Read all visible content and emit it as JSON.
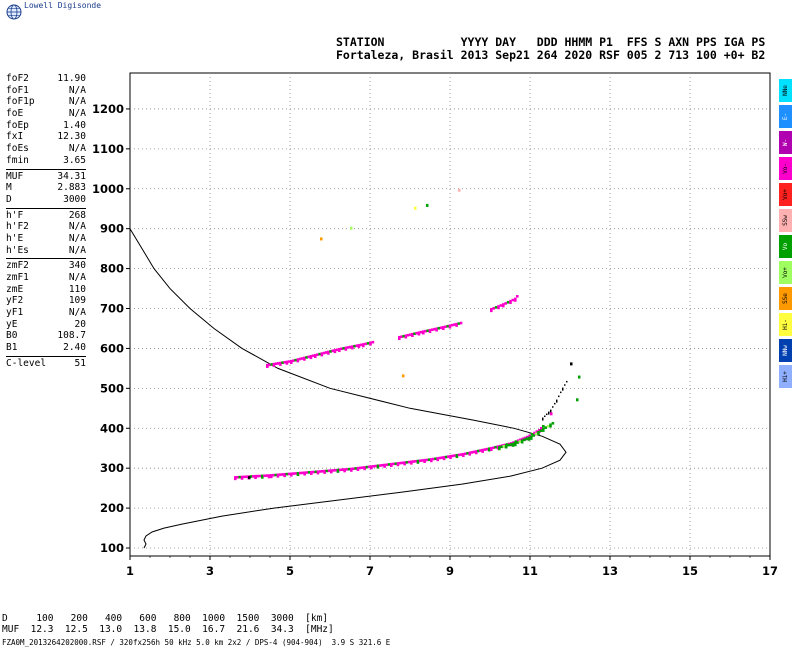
{
  "brand": {
    "name": "Lowell Digisonde",
    "icon": "globe-icon"
  },
  "header": {
    "line1": "STATION           YYYY DAY   DDD HHMM P1  FFS S AXN PPS IGA PS",
    "line2": "Fortaleza, Brasil 2013 Sep21 264 2020 RSF 005 2 713 100 +0+ B2"
  },
  "params_groups": [
    [
      {
        "k": "foF2",
        "v": "11.90"
      },
      {
        "k": "foF1",
        "v": "N/A"
      },
      {
        "k": "foF1p",
        "v": "N/A"
      },
      {
        "k": "foE",
        "v": "N/A"
      },
      {
        "k": "foEp",
        "v": "1.40"
      },
      {
        "k": "fxI",
        "v": "12.30"
      },
      {
        "k": "foEs",
        "v": "N/A"
      },
      {
        "k": "fmin",
        "v": "3.65"
      }
    ],
    [
      {
        "k": "MUF",
        "v": "34.31"
      },
      {
        "k": "M",
        "v": "2.883"
      },
      {
        "k": "D",
        "v": "3000"
      }
    ],
    [
      {
        "k": "h'F",
        "v": "268"
      },
      {
        "k": "h'F2",
        "v": "N/A"
      },
      {
        "k": "h'E",
        "v": "N/A"
      },
      {
        "k": "h'Es",
        "v": "N/A"
      }
    ],
    [
      {
        "k": "zmF2",
        "v": "340"
      },
      {
        "k": "zmF1",
        "v": "N/A"
      },
      {
        "k": "zmE",
        "v": "110"
      },
      {
        "k": "yF2",
        "v": "109"
      },
      {
        "k": "yF1",
        "v": "N/A"
      },
      {
        "k": "yE",
        "v": "20"
      },
      {
        "k": "B0",
        "v": "108.7"
      },
      {
        "k": "B1",
        "v": "2.40"
      }
    ],
    [
      {
        "k": "C-level",
        "v": "51"
      }
    ]
  ],
  "side_legend": [
    {
      "label": "NNe",
      "color": "#00e0ff"
    },
    {
      "label": "E-",
      "color": "#1e90ff"
    },
    {
      "label": "W-",
      "color": "#b000b0"
    },
    {
      "label": "Vo-",
      "color": "#ff00cc"
    },
    {
      "label": "Vo+",
      "color": "#ff2020"
    },
    {
      "label": "SSw",
      "color": "#ffb0b0"
    },
    {
      "label": "Vo",
      "color": "#00a000"
    },
    {
      "label": "Vo+",
      "color": "#a0ff60"
    },
    {
      "label": "SSe",
      "color": "#ff9900"
    },
    {
      "label": "Hi-",
      "color": "#ffff40"
    },
    {
      "label": "NNw",
      "color": "#0040b0"
    },
    {
      "label": "Hi+",
      "color": "#90b0ff"
    }
  ],
  "chart_data": {
    "type": "scatter",
    "title": "",
    "xlabel": "",
    "ylabel": "",
    "xlim": [
      1,
      17
    ],
    "ylim": [
      80,
      1290
    ],
    "x_ticks": [
      1,
      3,
      5,
      7,
      9,
      11,
      13,
      15,
      17
    ],
    "y_ticks": [
      100,
      200,
      300,
      400,
      500,
      600,
      700,
      800,
      900,
      1000,
      1100,
      1200
    ],
    "grid": true,
    "profile": {
      "h": [
        100,
        110,
        120,
        130,
        140,
        150,
        160,
        180,
        200,
        220,
        240,
        260,
        280,
        300,
        320,
        340,
        360,
        380,
        400,
        420,
        450,
        500,
        550,
        600,
        650,
        700,
        750,
        800,
        850,
        900
      ],
      "f": [
        1.35,
        1.4,
        1.35,
        1.4,
        1.55,
        1.85,
        2.3,
        3.3,
        4.6,
        6.2,
        7.8,
        9.3,
        10.5,
        11.3,
        11.75,
        11.9,
        11.75,
        11.3,
        10.6,
        9.6,
        8.0,
        6.0,
        4.7,
        3.8,
        3.1,
        2.5,
        2.0,
        1.6,
        1.3,
        1.0
      ]
    },
    "traces": [
      {
        "name": "O-trace F2",
        "color": "#ff00cc",
        "accent": "#00a000",
        "points": [
          [
            3.6,
            277
          ],
          [
            4.5,
            282
          ],
          [
            5.5,
            290
          ],
          [
            6.5,
            298
          ],
          [
            7.5,
            310
          ],
          [
            8.5,
            322
          ],
          [
            9.3,
            335
          ],
          [
            10.0,
            350
          ],
          [
            10.5,
            362
          ],
          [
            10.9,
            378
          ],
          [
            11.2,
            395
          ],
          [
            11.35,
            410
          ]
        ]
      },
      {
        "name": "X-trace F2",
        "color": "#00a000",
        "accent": "#a0ff60",
        "points": [
          [
            10.2,
            352
          ],
          [
            10.6,
            362
          ],
          [
            11.0,
            378
          ],
          [
            11.3,
            398
          ],
          [
            11.6,
            416
          ]
        ]
      },
      {
        "name": "multiple echo",
        "color": "#ff00cc",
        "accent": "#00a000",
        "points": [
          [
            4.4,
            558
          ],
          [
            5.0,
            568
          ],
          [
            5.6,
            583
          ],
          [
            6.2,
            598
          ],
          [
            6.8,
            610
          ],
          [
            7.1,
            617
          ]
        ]
      },
      {
        "name": "multiple echo 2",
        "color": "#ff00cc",
        "accent": "#00a000",
        "points": [
          [
            7.7,
            628
          ],
          [
            8.3,
            642
          ],
          [
            8.8,
            653
          ],
          [
            9.3,
            665
          ]
        ]
      },
      {
        "name": "multiple echo 3",
        "color": "#ff00cc",
        "accent": "#00a000",
        "points": [
          [
            10.0,
            698
          ],
          [
            10.3,
            710
          ],
          [
            10.6,
            724
          ],
          [
            10.7,
            737
          ]
        ]
      },
      {
        "name": "trace edge",
        "color": "#000000",
        "accent": "#000000",
        "points": [
          [
            11.3,
            425
          ],
          [
            11.5,
            445
          ],
          [
            11.65,
            470
          ],
          [
            11.8,
            500
          ],
          [
            11.95,
            525
          ]
        ]
      }
    ],
    "scatter": [
      {
        "x": 12.2,
        "y": 532,
        "c": "#00a000"
      },
      {
        "x": 12.15,
        "y": 475,
        "c": "#00a000"
      },
      {
        "x": 12.0,
        "y": 565,
        "c": "#000000"
      },
      {
        "x": 7.8,
        "y": 535,
        "c": "#ff9900"
      },
      {
        "x": 5.75,
        "y": 878,
        "c": "#ff9900"
      },
      {
        "x": 6.5,
        "y": 905,
        "c": "#a0ff60"
      },
      {
        "x": 8.1,
        "y": 955,
        "c": "#ffff40"
      },
      {
        "x": 8.4,
        "y": 962,
        "c": "#00a000"
      },
      {
        "x": 9.2,
        "y": 1000,
        "c": "#ffb0b0"
      },
      {
        "x": 3.95,
        "y": 280,
        "c": "#000000"
      },
      {
        "x": 11.5,
        "y": 440,
        "c": "#ff00cc"
      }
    ]
  },
  "distance_table": {
    "row1": "D     100   200   400   600   800  1000  1500  3000  [km]",
    "row2": "MUF  12.3  12.5  13.0  13.8  15.0  16.7  21.6  34.3  [MHz]"
  },
  "footer": "FZA0M_2013264202000.RSF / 320fx256h 50 kHz 5.0 km 2x2 / DPS-4 (904-904)  3.9 S 321.6 E"
}
